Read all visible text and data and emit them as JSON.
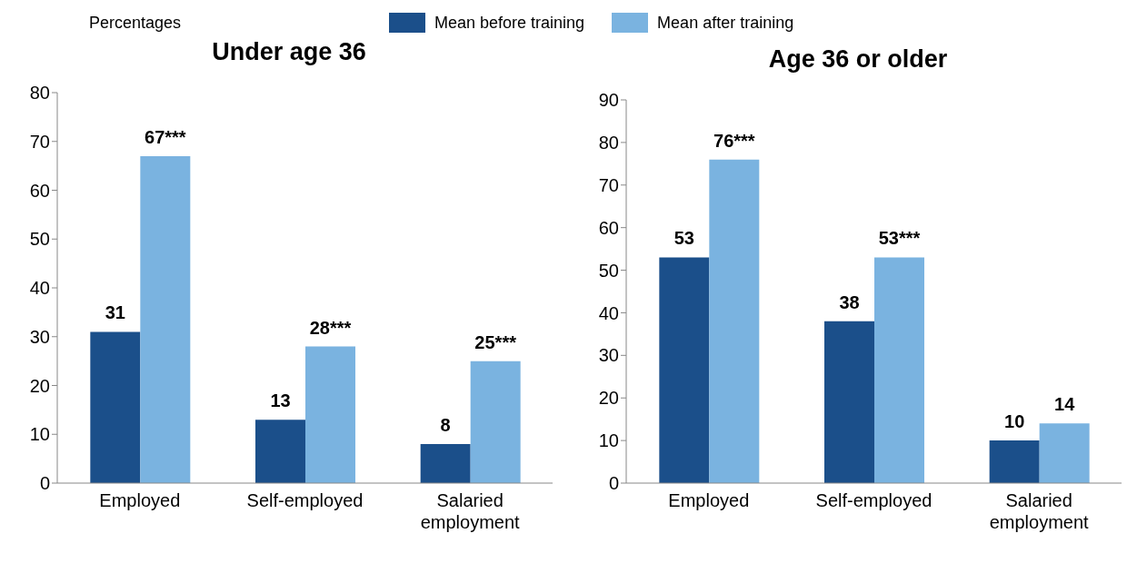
{
  "chart_data": [
    {
      "type": "bar",
      "title": "Under age 36",
      "ylabel": "Percentages",
      "categories": [
        "Employed",
        "Self-employed",
        "Salaried employment"
      ],
      "series": [
        {
          "name": "Mean before training",
          "color": "#1b4f8a",
          "values": [
            31,
            13,
            8
          ],
          "value_labels": [
            "31",
            "13",
            "8"
          ]
        },
        {
          "name": "Mean after training",
          "color": "#7ab3e0",
          "values": [
            67,
            28,
            25
          ],
          "value_labels": [
            "67***",
            "28***",
            "25***"
          ]
        }
      ],
      "ylim": [
        0,
        80
      ],
      "yticks": [
        0,
        10,
        20,
        30,
        40,
        50,
        60,
        70,
        80
      ],
      "grid": false,
      "legend": "top"
    },
    {
      "type": "bar",
      "title": "Age 36 or older",
      "categories": [
        "Employed",
        "Self-employed",
        "Salaried employment"
      ],
      "series": [
        {
          "color": "#1b4f8a",
          "values": [
            53,
            38,
            10
          ],
          "value_labels": [
            "53",
            "38",
            "10"
          ]
        },
        {
          "color": "#7ab3e0",
          "values": [
            76,
            53,
            14
          ],
          "value_labels": [
            "76***",
            "53***",
            "14"
          ]
        }
      ],
      "ylim": [
        0,
        90
      ],
      "yticks": [
        0,
        10,
        20,
        30,
        40,
        50,
        60,
        70,
        80,
        90
      ],
      "grid": false,
      "legend": false
    }
  ]
}
